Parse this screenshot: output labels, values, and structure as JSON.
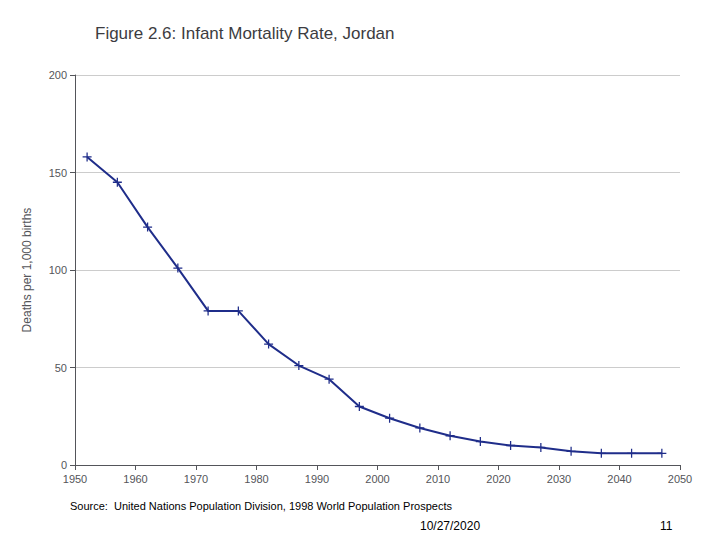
{
  "chart_data": {
    "type": "line",
    "title": "Figure 2.6: Infant Mortality Rate, Jordan",
    "ylabel": "Deaths per 1,000 births",
    "annotations": [
      "Source:  United Nations Population Division, 1998 World Population Prospects",
      "10/27/2020",
      "11"
    ],
    "x": [
      1952,
      1957,
      1962,
      1967,
      1972,
      1977,
      1982,
      1987,
      1992,
      1997,
      2002,
      2007,
      2012,
      2017,
      2022,
      2027,
      2032,
      2037,
      2042,
      2047
    ],
    "values": [
      158,
      145,
      122,
      101,
      79,
      79,
      62,
      51,
      44,
      30,
      24,
      19,
      15,
      12,
      10,
      9,
      7,
      6,
      6,
      6
    ],
    "color": "#1F2D8A",
    "marker": "plus",
    "xlim": [
      1950,
      2050
    ],
    "xticks": [
      1950,
      1960,
      1970,
      1980,
      1990,
      2000,
      2010,
      2020,
      2030,
      2040,
      2050
    ],
    "ylim": [
      0,
      200
    ],
    "yticks": [
      0,
      50,
      100,
      150,
      200
    ],
    "grid": true
  }
}
